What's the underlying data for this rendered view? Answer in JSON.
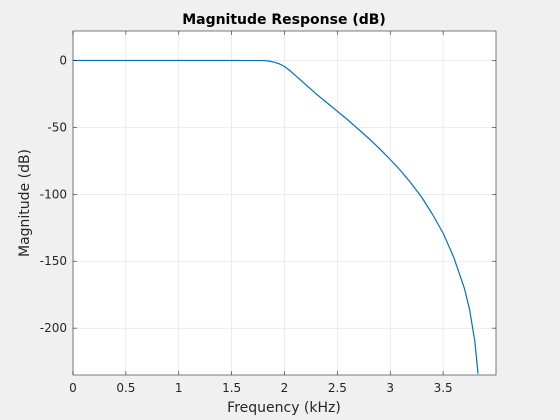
{
  "chart_data": {
    "type": "line",
    "title": "Magnitude Response (dB)",
    "xlabel": "Frequency (kHz)",
    "ylabel": "Magnitude (dB)",
    "xlim": [
      0,
      4
    ],
    "ylim": [
      -235,
      22
    ],
    "x_ticks": [
      0,
      0.5,
      1,
      1.5,
      2,
      2.5,
      3,
      3.5
    ],
    "x_tick_labels": [
      "0",
      "0.5",
      "1",
      "1.5",
      "2",
      "2.5",
      "3",
      "3.5"
    ],
    "y_ticks": [
      0,
      -50,
      -100,
      -150,
      -200
    ],
    "y_tick_labels": [
      "0",
      "-50",
      "-100",
      "-150",
      "-200"
    ],
    "grid": true,
    "series": [
      {
        "color": "#0072bd",
        "x": [
          0,
          0.5,
          1.0,
          1.5,
          1.8,
          1.85,
          1.9,
          1.95,
          2.0,
          2.05,
          2.1,
          2.2,
          2.3,
          2.4,
          2.5,
          2.6,
          2.7,
          2.8,
          2.9,
          3.0,
          3.1,
          3.2,
          3.3,
          3.4,
          3.5,
          3.6,
          3.7,
          3.75,
          3.8,
          3.83
        ],
        "y": [
          0,
          0,
          0,
          0,
          -0.1,
          -0.4,
          -1.2,
          -2.5,
          -4.5,
          -7.5,
          -11,
          -18,
          -25,
          -31.5,
          -38,
          -44.5,
          -51.5,
          -58.5,
          -66,
          -74,
          -82.5,
          -92,
          -102.5,
          -115,
          -129,
          -147,
          -170,
          -186,
          -210,
          -234
        ]
      }
    ]
  }
}
